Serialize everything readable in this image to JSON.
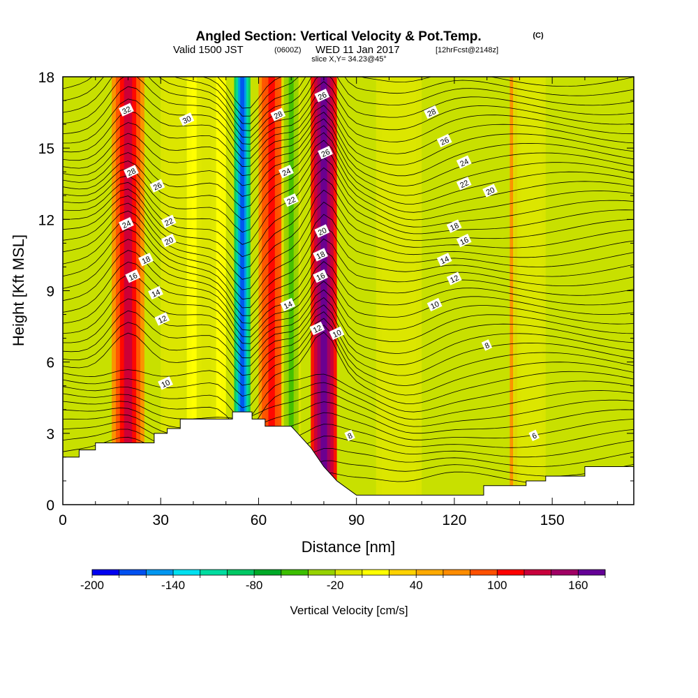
{
  "header": {
    "title": "Angled Section: Vertical Velocity & Pot.Temp.",
    "title_unit": "(C)",
    "valid_prefix": "Valid 1500 JST",
    "valid_z": "(0600Z)",
    "valid_date": "WED 11 Jan 2017",
    "valid_fcst": "[12hrFcst@2148z]",
    "slice": "slice X,Y= 34.23@45°"
  },
  "chart_data": {
    "type": "heatmap",
    "xlabel": "Distance [nm]",
    "ylabel": "Height [Kft MSL]",
    "xlim": [
      0,
      175
    ],
    "ylim": [
      0,
      18
    ],
    "x_ticks": [
      0,
      30,
      60,
      90,
      120,
      150
    ],
    "y_ticks": [
      0,
      3,
      6,
      9,
      12,
      15,
      18
    ],
    "colorbar": {
      "label": "Vertical Velocity [cm/s]",
      "tick_labels": [
        "-200",
        "-140",
        "-80",
        "-20",
        "40",
        "100",
        "160"
      ],
      "tick_values": [
        -200,
        -140,
        -80,
        -20,
        40,
        100,
        160
      ],
      "colors": [
        "#0000f0",
        "#0050f0",
        "#0096f0",
        "#00e0f0",
        "#00dca0",
        "#00c864",
        "#00aa28",
        "#3cbe00",
        "#96d200",
        "#dce600",
        "#ffff00",
        "#ffd200",
        "#ffaa00",
        "#ff8c00",
        "#ff5000",
        "#ff0000",
        "#c8003c",
        "#a00064",
        "#640096"
      ]
    },
    "vertical_velocity_bands": [
      {
        "x": 20,
        "width": 5,
        "w": 110
      },
      {
        "x": 34,
        "width": 4,
        "w": -40
      },
      {
        "x": 44,
        "width": 6,
        "w": -25
      },
      {
        "x": 55,
        "width": 2.5,
        "w": -200
      },
      {
        "x": 64,
        "width": 4,
        "w": 90
      },
      {
        "x": 70,
        "width": 3,
        "w": -70
      },
      {
        "x": 80,
        "width": 4,
        "w": 160
      },
      {
        "x": 103,
        "width": 7,
        "w": -40
      },
      {
        "x": 140,
        "width": 3,
        "w": 80
      },
      {
        "x": 143,
        "width": 5,
        "w": -40
      }
    ],
    "terrain": [
      [
        0,
        2.0
      ],
      [
        5,
        2.0
      ],
      [
        5,
        2.3
      ],
      [
        10,
        2.3
      ],
      [
        10,
        2.6
      ],
      [
        28,
        2.6
      ],
      [
        28,
        3.0
      ],
      [
        32,
        3.0
      ],
      [
        32,
        3.2
      ],
      [
        36,
        3.2
      ],
      [
        36,
        3.6
      ],
      [
        52,
        3.6
      ],
      [
        52,
        3.9
      ],
      [
        58,
        3.9
      ],
      [
        58,
        3.6
      ],
      [
        62,
        3.6
      ],
      [
        62,
        3.3
      ],
      [
        70,
        3.3
      ],
      [
        72,
        3.0
      ],
      [
        76,
        2.4
      ],
      [
        80,
        1.6
      ],
      [
        84,
        1.0
      ],
      [
        88,
        0.6
      ],
      [
        90,
        0.4
      ],
      [
        129,
        0.4
      ],
      [
        129,
        0.8
      ],
      [
        142,
        0.8
      ],
      [
        142,
        1.0
      ],
      [
        148,
        1.0
      ],
      [
        148,
        1.2
      ],
      [
        160,
        1.2
      ],
      [
        160,
        1.6
      ],
      [
        175,
        1.6
      ]
    ],
    "isentropes_C": [
      6,
      8,
      10,
      12,
      14,
      16,
      18,
      20,
      22,
      24,
      26,
      28,
      30,
      32
    ],
    "contour_labels": [
      {
        "text": "32",
        "x": 19.5,
        "y": 16.6
      },
      {
        "text": "30",
        "x": 38,
        "y": 16.2
      },
      {
        "text": "28",
        "x": 21,
        "y": 14.0
      },
      {
        "text": "26",
        "x": 29,
        "y": 13.4
      },
      {
        "text": "24",
        "x": 19.5,
        "y": 11.8
      },
      {
        "text": "22",
        "x": 32.5,
        "y": 11.9
      },
      {
        "text": "20",
        "x": 32.5,
        "y": 11.1
      },
      {
        "text": "18",
        "x": 25.5,
        "y": 10.3
      },
      {
        "text": "16",
        "x": 21.5,
        "y": 9.6
      },
      {
        "text": "14",
        "x": 28.5,
        "y": 8.9
      },
      {
        "text": "12",
        "x": 30.5,
        "y": 7.8
      },
      {
        "text": "10",
        "x": 31.5,
        "y": 5.1
      },
      {
        "text": "28",
        "x": 66,
        "y": 16.4
      },
      {
        "text": "24",
        "x": 68.5,
        "y": 14.0
      },
      {
        "text": "22",
        "x": 70,
        "y": 12.8
      },
      {
        "text": "14",
        "x": 69,
        "y": 8.4
      },
      {
        "text": "26",
        "x": 79.5,
        "y": 17.2
      },
      {
        "text": "26",
        "x": 80.5,
        "y": 14.8
      },
      {
        "text": "20",
        "x": 79.5,
        "y": 11.5
      },
      {
        "text": "18",
        "x": 79,
        "y": 10.5
      },
      {
        "text": "16",
        "x": 79,
        "y": 9.6
      },
      {
        "text": "12",
        "x": 78,
        "y": 7.4
      },
      {
        "text": "10",
        "x": 84,
        "y": 7.2
      },
      {
        "text": "8",
        "x": 88,
        "y": 2.9
      },
      {
        "text": "28",
        "x": 113,
        "y": 16.5
      },
      {
        "text": "26",
        "x": 117,
        "y": 15.3
      },
      {
        "text": "24",
        "x": 123,
        "y": 14.4
      },
      {
        "text": "22",
        "x": 123,
        "y": 13.5
      },
      {
        "text": "20",
        "x": 131,
        "y": 13.2
      },
      {
        "text": "18",
        "x": 120,
        "y": 11.7
      },
      {
        "text": "16",
        "x": 123,
        "y": 11.1
      },
      {
        "text": "14",
        "x": 117,
        "y": 10.3
      },
      {
        "text": "12",
        "x": 120,
        "y": 9.5
      },
      {
        "text": "10",
        "x": 114,
        "y": 8.4
      },
      {
        "text": "8",
        "x": 130,
        "y": 6.7
      },
      {
        "text": "6",
        "x": 144.5,
        "y": 2.9
      }
    ]
  }
}
